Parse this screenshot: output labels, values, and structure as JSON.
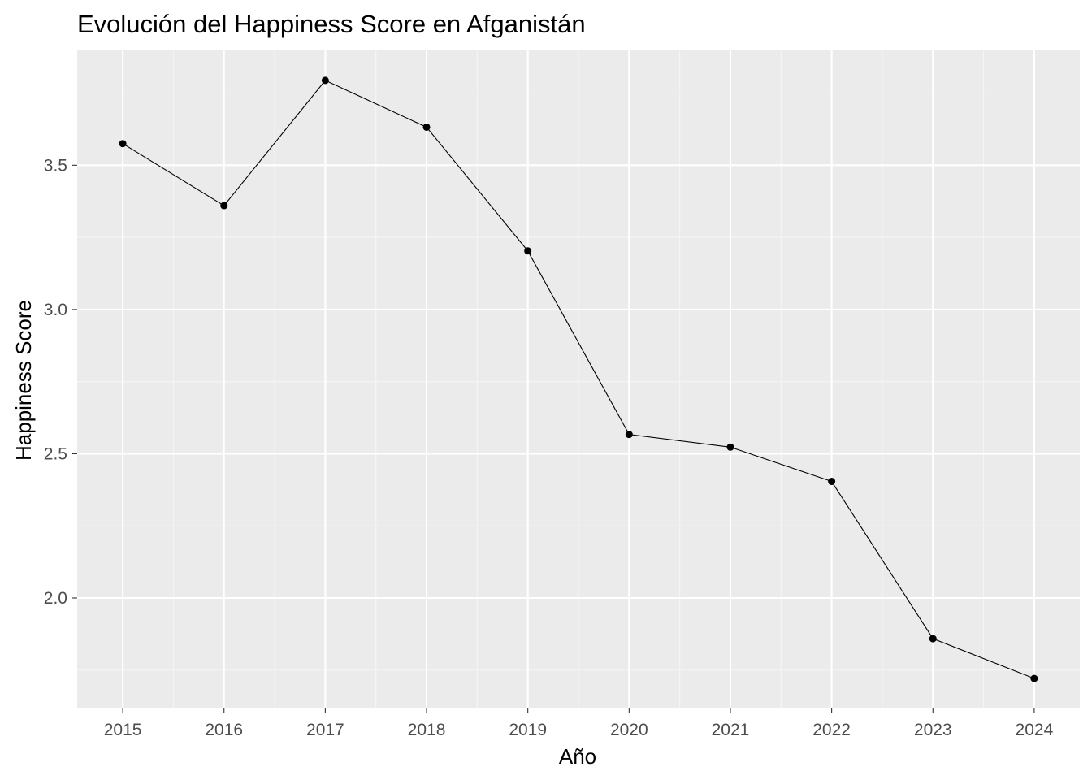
{
  "chart_data": {
    "type": "line",
    "title": "Evolución del Happiness Score en Afganistán",
    "xlabel": "Año",
    "ylabel": "Happiness Score",
    "x": [
      2015,
      2016,
      2017,
      2018,
      2019,
      2020,
      2021,
      2022,
      2023,
      2024
    ],
    "x_tick_labels": [
      "2015",
      "2016",
      "2017",
      "2018",
      "2019",
      "2020",
      "2021",
      "2022",
      "2023",
      "2024"
    ],
    "y": [
      3.575,
      3.36,
      3.794,
      3.632,
      3.203,
      2.567,
      2.523,
      2.404,
      1.859,
      1.721
    ],
    "y_ticks": [
      2.0,
      2.5,
      3.0,
      3.5
    ],
    "y_tick_labels": [
      "2.0",
      "2.5",
      "3.0",
      "3.5"
    ],
    "xlim": [
      2014.55,
      2024.45
    ],
    "ylim": [
      1.617,
      3.898
    ],
    "grid": true,
    "legend": "none",
    "colors": {
      "panel_background": "#ebebeb",
      "grid_major": "#ffffff",
      "grid_minor": "#f5f5f5",
      "line": "#000000",
      "points": "#000000",
      "tick_text": "#4d4d4d",
      "tick_marks": "#333333"
    }
  }
}
